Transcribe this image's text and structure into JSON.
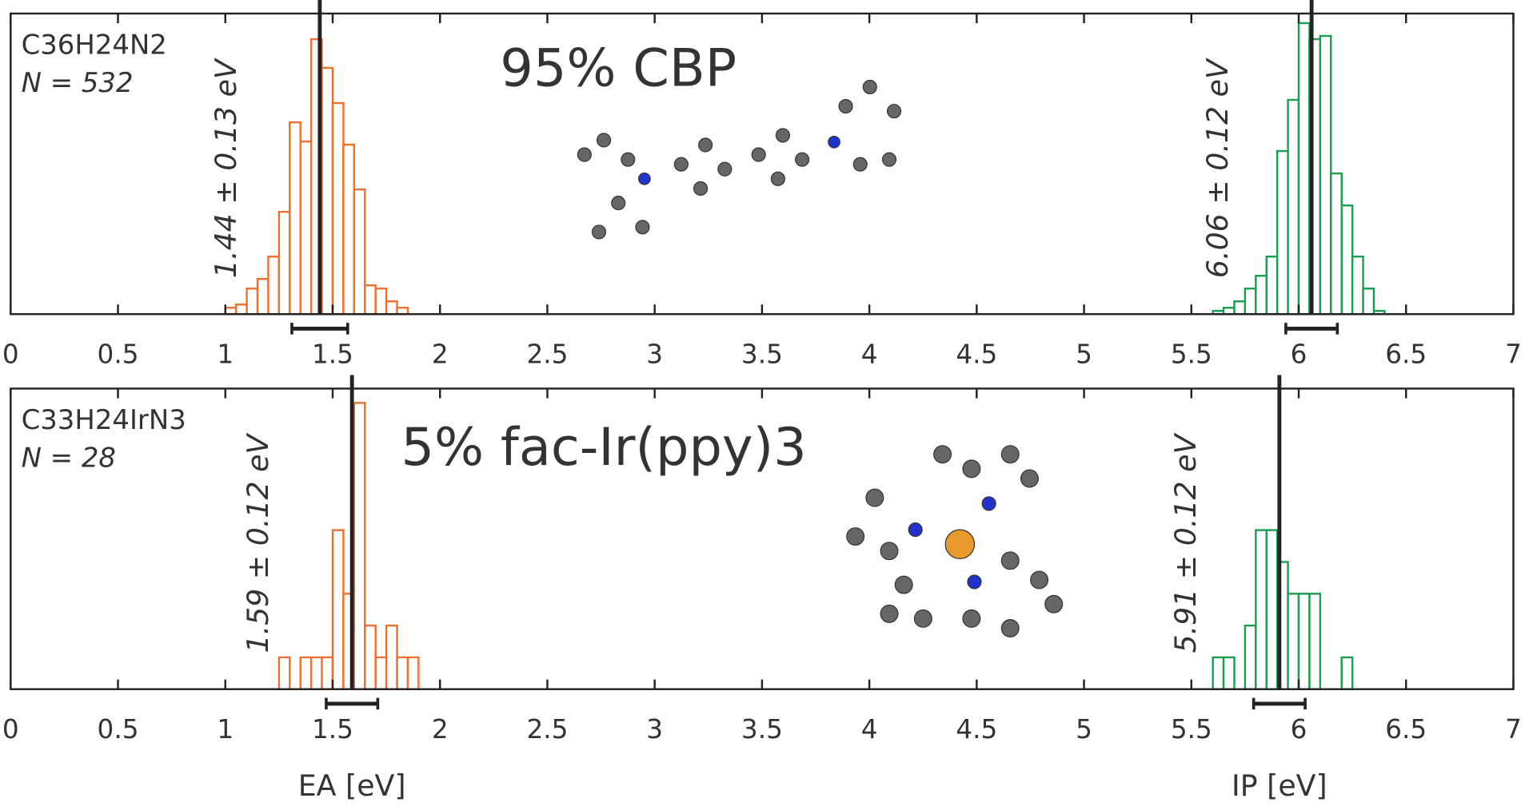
{
  "chart_data": [
    {
      "type": "histogram",
      "title": "95% CBP",
      "formula": "C36H24N2",
      "count_label": "N = 532",
      "xlim": [
        0,
        7
      ],
      "xticks": [
        0,
        0.5,
        1,
        1.5,
        2,
        2.5,
        3,
        3.5,
        4,
        4.5,
        5,
        5.5,
        6,
        6.5,
        7
      ],
      "ylim": [
        0,
        94
      ],
      "series": [
        {
          "color": "#f07030",
          "bins": [
            1,
            1.05,
            1.1,
            1.15,
            1.2,
            1.25,
            1.3,
            1.35,
            1.4,
            1.45,
            1.5,
            1.55,
            1.6,
            1.65,
            1.7,
            1.75,
            1.8,
            1.85
          ],
          "values": [
            2,
            3,
            8,
            11,
            18,
            32,
            60,
            54,
            86,
            77,
            66,
            53,
            39,
            9,
            8,
            4,
            2
          ]
        },
        {
          "color": "#1a9e50",
          "bins": [
            5.6,
            5.65,
            5.7,
            5.75,
            5.8,
            5.85,
            5.9,
            5.95,
            6,
            6.05,
            6.1,
            6.15,
            6.2,
            6.25,
            6.3,
            6.35,
            6.4
          ],
          "values": [
            1,
            2,
            4,
            8,
            12,
            18,
            51,
            67,
            91,
            86,
            87,
            44,
            34,
            18,
            8,
            1
          ]
        }
      ],
      "means": [
        {
          "value": 1.44,
          "error": 0.13,
          "label": "1.44 ± 0.13 eV"
        },
        {
          "value": 6.06,
          "error": 0.12,
          "label": "6.06 ± 0.12 eV"
        }
      ]
    },
    {
      "type": "histogram",
      "title": "5% fac-Ir(ppy)3",
      "formula": "C33H24IrN3",
      "count_label": "N = 28",
      "xlim": [
        0,
        7
      ],
      "xticks": [
        0,
        0.5,
        1,
        1.5,
        2,
        2.5,
        3,
        3.5,
        4,
        4.5,
        5,
        5.5,
        6,
        6.5,
        7
      ],
      "ylim": [
        0,
        9.45
      ],
      "series": [
        {
          "color": "#f07030",
          "bins": [
            1.25,
            1.3,
            1.35,
            1.4,
            1.45,
            1.5,
            1.55,
            1.6,
            1.65,
            1.7,
            1.75,
            1.8,
            1.85,
            1.9
          ],
          "values": [
            1,
            0,
            1,
            1,
            1,
            5,
            3,
            9,
            2,
            1,
            2,
            1,
            1
          ]
        },
        {
          "color": "#1a9e50",
          "bins": [
            5.6,
            5.65,
            5.7,
            5.75,
            5.8,
            5.85,
            5.9,
            5.95,
            6,
            6.05,
            6.1,
            6.15,
            6.2,
            6.25
          ],
          "values": [
            1,
            1,
            0,
            2,
            5,
            5,
            4,
            3,
            3,
            3,
            0,
            0,
            1
          ]
        }
      ],
      "means": [
        {
          "value": 1.59,
          "error": 0.12,
          "label": "1.59 ± 0.12 eV"
        },
        {
          "value": 5.91,
          "error": 0.12,
          "label": "5.91 ± 0.12 eV"
        }
      ],
      "axis_labels": [
        "EA [eV]",
        "IP [eV]"
      ]
    }
  ]
}
